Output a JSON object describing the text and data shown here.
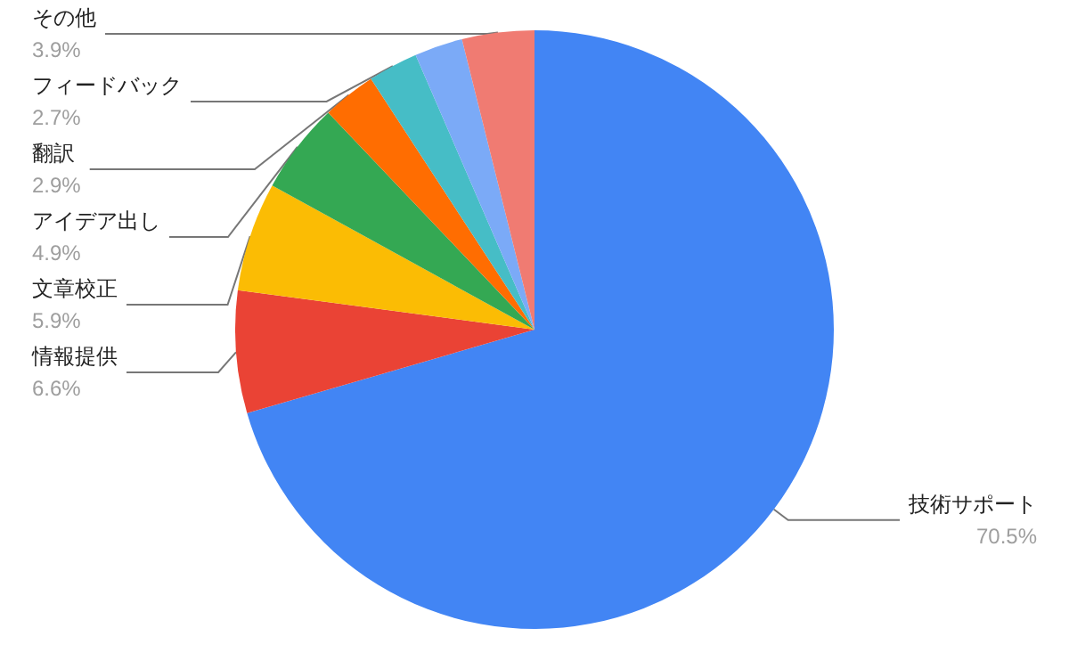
{
  "chart_data": {
    "type": "pie",
    "categories": [
      "技術サポート",
      "情報提供",
      "文章校正",
      "アイデア出し",
      "翻訳",
      "フィードバック",
      null,
      "その他"
    ],
    "values": [
      70.5,
      6.6,
      5.9,
      4.9,
      2.9,
      2.7,
      2.6,
      3.9
    ],
    "colors": [
      "#4285f4",
      "#ea4335",
      "#fbbc04",
      "#34a853",
      "#ff6d01",
      "#46bdc6",
      "#7baaf7",
      "#f07b72"
    ],
    "value_labels": [
      "70.5%",
      "6.6%",
      "5.9%",
      "4.9%",
      "2.9%",
      "2.7%",
      null,
      "3.9%"
    ],
    "legend": false
  }
}
